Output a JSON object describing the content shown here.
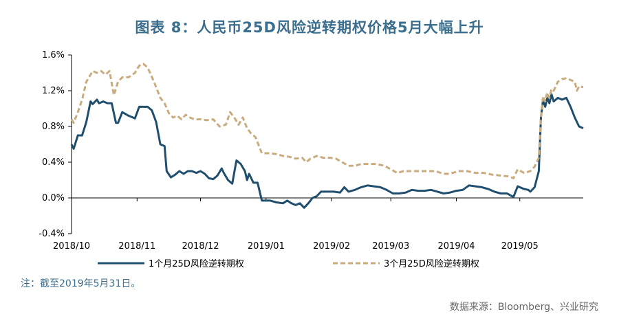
{
  "chart_data": {
    "type": "line",
    "title": "图表 8：人民币25D风险逆转期权价格5月大幅上升",
    "xlabel": "",
    "ylabel": "",
    "ylim": [
      -0.4,
      1.6
    ],
    "yticks": [
      -0.4,
      0.0,
      0.4,
      0.8,
      1.2,
      1.6
    ],
    "ytick_labels": [
      "-0.4%",
      "0.0%",
      "0.4%",
      "0.8%",
      "1.2%",
      "1.6%"
    ],
    "x_range": [
      "2018-10-01",
      "2019-05-31"
    ],
    "xticks": [
      "2018-10-01",
      "2018-11-01",
      "2018-12-01",
      "2019-01-01",
      "2019-02-01",
      "2019-03-01",
      "2019-04-01",
      "2019-05-01"
    ],
    "xtick_labels": [
      "2018/10",
      "2018/11",
      "2018/12",
      "2019/01",
      "2019/02",
      "2019/03",
      "2019/04",
      "2019/05"
    ],
    "grid": false,
    "legend_position": "bottom",
    "series": [
      {
        "name": "1个月25D风险逆转期权",
        "color": "#1f4e6e",
        "style": "solid",
        "points": [
          [
            "2018-10-01",
            0.6
          ],
          [
            "2018-10-02",
            0.55
          ],
          [
            "2018-10-04",
            0.7
          ],
          [
            "2018-10-06",
            0.7
          ],
          [
            "2018-10-08",
            0.85
          ],
          [
            "2018-10-10",
            1.08
          ],
          [
            "2018-10-11",
            1.05
          ],
          [
            "2018-10-13",
            1.1
          ],
          [
            "2018-10-14",
            1.06
          ],
          [
            "2018-10-16",
            1.08
          ],
          [
            "2018-10-18",
            1.06
          ],
          [
            "2018-10-20",
            1.06
          ],
          [
            "2018-10-22",
            0.84
          ],
          [
            "2018-10-23",
            0.84
          ],
          [
            "2018-10-25",
            0.96
          ],
          [
            "2018-10-28",
            0.92
          ],
          [
            "2018-10-31",
            0.89
          ],
          [
            "2018-11-02",
            1.02
          ],
          [
            "2018-11-04",
            1.02
          ],
          [
            "2018-11-06",
            1.02
          ],
          [
            "2018-11-08",
            0.98
          ],
          [
            "2018-11-10",
            0.85
          ],
          [
            "2018-11-12",
            0.6
          ],
          [
            "2018-11-14",
            0.58
          ],
          [
            "2018-11-15",
            0.3
          ],
          [
            "2018-11-17",
            0.23
          ],
          [
            "2018-11-19",
            0.26
          ],
          [
            "2018-11-21",
            0.3
          ],
          [
            "2018-11-23",
            0.27
          ],
          [
            "2018-11-25",
            0.3
          ],
          [
            "2018-11-27",
            0.3
          ],
          [
            "2018-11-29",
            0.28
          ],
          [
            "2018-12-01",
            0.3
          ],
          [
            "2018-12-03",
            0.27
          ],
          [
            "2018-12-05",
            0.22
          ],
          [
            "2018-12-07",
            0.21
          ],
          [
            "2018-12-09",
            0.25
          ],
          [
            "2018-12-11",
            0.33
          ],
          [
            "2018-12-12",
            0.28
          ],
          [
            "2018-12-14",
            0.2
          ],
          [
            "2018-12-16",
            0.16
          ],
          [
            "2018-12-18",
            0.42
          ],
          [
            "2018-12-20",
            0.38
          ],
          [
            "2018-12-22",
            0.3
          ],
          [
            "2018-12-23",
            0.2
          ],
          [
            "2018-12-24",
            0.27
          ],
          [
            "2018-12-26",
            0.17
          ],
          [
            "2018-12-28",
            0.17
          ],
          [
            "2018-12-30",
            -0.03
          ],
          [
            "2019-01-03",
            -0.03
          ],
          [
            "2019-01-06",
            -0.05
          ],
          [
            "2019-01-09",
            -0.06
          ],
          [
            "2019-01-11",
            -0.03
          ],
          [
            "2019-01-13",
            -0.06
          ],
          [
            "2019-01-15",
            -0.08
          ],
          [
            "2019-01-17",
            -0.06
          ],
          [
            "2019-01-19",
            -0.11
          ],
          [
            "2019-01-21",
            -0.06
          ],
          [
            "2019-01-23",
            0.0
          ],
          [
            "2019-01-25",
            0.02
          ],
          [
            "2019-01-27",
            0.07
          ],
          [
            "2019-01-30",
            0.07
          ],
          [
            "2019-02-02",
            0.07
          ],
          [
            "2019-02-05",
            0.06
          ],
          [
            "2019-02-07",
            0.12
          ],
          [
            "2019-02-09",
            0.07
          ],
          [
            "2019-02-12",
            0.09
          ],
          [
            "2019-02-15",
            0.12
          ],
          [
            "2019-02-18",
            0.14
          ],
          [
            "2019-02-21",
            0.13
          ],
          [
            "2019-02-24",
            0.12
          ],
          [
            "2019-02-27",
            0.09
          ],
          [
            "2019-03-02",
            0.05
          ],
          [
            "2019-03-05",
            0.05
          ],
          [
            "2019-03-08",
            0.06
          ],
          [
            "2019-03-11",
            0.09
          ],
          [
            "2019-03-14",
            0.08
          ],
          [
            "2019-03-17",
            0.08
          ],
          [
            "2019-03-20",
            0.09
          ],
          [
            "2019-03-23",
            0.07
          ],
          [
            "2019-03-26",
            0.05
          ],
          [
            "2019-03-29",
            0.06
          ],
          [
            "2019-04-01",
            0.08
          ],
          [
            "2019-04-04",
            0.09
          ],
          [
            "2019-04-07",
            0.14
          ],
          [
            "2019-04-10",
            0.13
          ],
          [
            "2019-04-13",
            0.12
          ],
          [
            "2019-04-16",
            0.1
          ],
          [
            "2019-04-19",
            0.07
          ],
          [
            "2019-04-22",
            0.05
          ],
          [
            "2019-04-25",
            0.05
          ],
          [
            "2019-04-28",
            0.01
          ],
          [
            "2019-04-30",
            0.13
          ],
          [
            "2019-05-03",
            0.1
          ],
          [
            "2019-05-05",
            0.09
          ],
          [
            "2019-05-06",
            0.07
          ],
          [
            "2019-05-08",
            0.12
          ],
          [
            "2019-05-10",
            0.3
          ],
          [
            "2019-05-11",
            0.9
          ],
          [
            "2019-05-12",
            1.1
          ],
          [
            "2019-05-13",
            1.02
          ],
          [
            "2019-05-14",
            1.12
          ],
          [
            "2019-05-15",
            1.06
          ],
          [
            "2019-05-16",
            1.16
          ],
          [
            "2019-05-17",
            1.08
          ],
          [
            "2019-05-19",
            1.12
          ],
          [
            "2019-05-21",
            1.1
          ],
          [
            "2019-05-23",
            1.12
          ],
          [
            "2019-05-25",
            1.02
          ],
          [
            "2019-05-27",
            0.9
          ],
          [
            "2019-05-29",
            0.8
          ],
          [
            "2019-05-31",
            0.78
          ]
        ]
      },
      {
        "name": "3个月25D风险逆转期权",
        "color": "#c9ab7e",
        "style": "dashed",
        "points": [
          [
            "2018-10-01",
            0.88
          ],
          [
            "2018-10-02",
            0.84
          ],
          [
            "2018-10-04",
            0.96
          ],
          [
            "2018-10-06",
            1.1
          ],
          [
            "2018-10-08",
            1.3
          ],
          [
            "2018-10-10",
            1.38
          ],
          [
            "2018-10-11",
            1.42
          ],
          [
            "2018-10-13",
            1.4
          ],
          [
            "2018-10-15",
            1.42
          ],
          [
            "2018-10-17",
            1.38
          ],
          [
            "2018-10-19",
            1.42
          ],
          [
            "2018-10-21",
            1.15
          ],
          [
            "2018-10-23",
            1.3
          ],
          [
            "2018-10-25",
            1.35
          ],
          [
            "2018-10-28",
            1.35
          ],
          [
            "2018-10-31",
            1.4
          ],
          [
            "2018-11-02",
            1.48
          ],
          [
            "2018-11-04",
            1.5
          ],
          [
            "2018-11-06",
            1.46
          ],
          [
            "2018-11-09",
            1.3
          ],
          [
            "2018-11-12",
            1.12
          ],
          [
            "2018-11-14",
            1.06
          ],
          [
            "2018-11-16",
            0.95
          ],
          [
            "2018-11-18",
            0.9
          ],
          [
            "2018-11-20",
            0.92
          ],
          [
            "2018-11-22",
            0.88
          ],
          [
            "2018-11-24",
            0.93
          ],
          [
            "2018-11-26",
            0.9
          ],
          [
            "2018-11-28",
            0.88
          ],
          [
            "2018-12-01",
            0.88
          ],
          [
            "2018-12-04",
            0.87
          ],
          [
            "2018-12-07",
            0.88
          ],
          [
            "2018-12-10",
            0.8
          ],
          [
            "2018-12-13",
            0.82
          ],
          [
            "2018-12-15",
            0.96
          ],
          [
            "2018-12-17",
            0.9
          ],
          [
            "2018-12-19",
            0.82
          ],
          [
            "2018-12-21",
            0.9
          ],
          [
            "2018-12-23",
            0.78
          ],
          [
            "2018-12-25",
            0.72
          ],
          [
            "2018-12-27",
            0.68
          ],
          [
            "2018-12-30",
            0.5
          ],
          [
            "2019-01-03",
            0.5
          ],
          [
            "2019-01-06",
            0.49
          ],
          [
            "2019-01-09",
            0.47
          ],
          [
            "2019-01-12",
            0.46
          ],
          [
            "2019-01-15",
            0.44
          ],
          [
            "2019-01-18",
            0.45
          ],
          [
            "2019-01-20",
            0.4
          ],
          [
            "2019-01-22",
            0.44
          ],
          [
            "2019-01-25",
            0.47
          ],
          [
            "2019-01-28",
            0.45
          ],
          [
            "2019-01-31",
            0.45
          ],
          [
            "2019-02-03",
            0.44
          ],
          [
            "2019-02-06",
            0.4
          ],
          [
            "2019-02-09",
            0.36
          ],
          [
            "2019-02-12",
            0.36
          ],
          [
            "2019-02-15",
            0.38
          ],
          [
            "2019-02-18",
            0.38
          ],
          [
            "2019-02-22",
            0.38
          ],
          [
            "2019-02-26",
            0.36
          ],
          [
            "2019-03-01",
            0.32
          ],
          [
            "2019-03-04",
            0.28
          ],
          [
            "2019-03-07",
            0.3
          ],
          [
            "2019-03-10",
            0.3
          ],
          [
            "2019-03-14",
            0.3
          ],
          [
            "2019-03-18",
            0.3
          ],
          [
            "2019-03-22",
            0.3
          ],
          [
            "2019-03-26",
            0.27
          ],
          [
            "2019-03-29",
            0.27
          ],
          [
            "2019-04-02",
            0.3
          ],
          [
            "2019-04-06",
            0.3
          ],
          [
            "2019-04-10",
            0.28
          ],
          [
            "2019-04-14",
            0.28
          ],
          [
            "2019-04-18",
            0.26
          ],
          [
            "2019-04-22",
            0.25
          ],
          [
            "2019-04-26",
            0.24
          ],
          [
            "2019-04-28",
            0.22
          ],
          [
            "2019-04-30",
            0.32
          ],
          [
            "2019-05-03",
            0.28
          ],
          [
            "2019-05-06",
            0.3
          ],
          [
            "2019-05-08",
            0.35
          ],
          [
            "2019-05-10",
            0.45
          ],
          [
            "2019-05-11",
            0.9
          ],
          [
            "2019-05-12",
            1.14
          ],
          [
            "2019-05-13",
            1.08
          ],
          [
            "2019-05-14",
            1.18
          ],
          [
            "2019-05-15",
            1.12
          ],
          [
            "2019-05-16",
            1.22
          ],
          [
            "2019-05-17",
            1.2
          ],
          [
            "2019-05-19",
            1.3
          ],
          [
            "2019-05-21",
            1.33
          ],
          [
            "2019-05-23",
            1.34
          ],
          [
            "2019-05-25",
            1.32
          ],
          [
            "2019-05-27",
            1.3
          ],
          [
            "2019-05-28",
            1.2
          ],
          [
            "2019-05-29",
            1.25
          ],
          [
            "2019-05-31",
            1.24
          ]
        ]
      }
    ]
  },
  "note": "注：截至2019年5月31日。",
  "source": "数据来源：Bloomberg、兴业研究"
}
